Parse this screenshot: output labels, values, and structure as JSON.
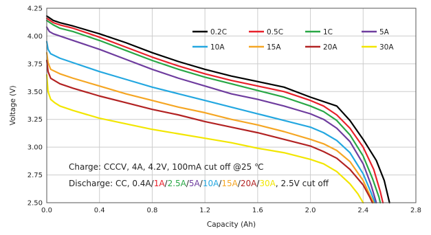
{
  "chart_data": {
    "type": "line",
    "xlabel": "Capacity (Ah)",
    "ylabel": "Voltage (V)",
    "xlim": [
      0.0,
      2.8
    ],
    "ylim": [
      2.5,
      4.25
    ],
    "xticks": [
      "0.0",
      "0.4",
      "0.8",
      "1.2",
      "1.6",
      "2.0",
      "2.4",
      "2.8"
    ],
    "yticks": [
      "2.50",
      "2.75",
      "3.00",
      "3.25",
      "3.50",
      "3.75",
      "4.00",
      "4.25"
    ],
    "grid": true,
    "legend_position": "top-right",
    "series": [
      {
        "name": "0.2C",
        "color": "#000000",
        "points": [
          [
            0.0,
            4.18
          ],
          [
            0.05,
            4.14
          ],
          [
            0.1,
            4.12
          ],
          [
            0.2,
            4.09
          ],
          [
            0.4,
            4.02
          ],
          [
            0.6,
            3.94
          ],
          [
            0.8,
            3.85
          ],
          [
            1.0,
            3.77
          ],
          [
            1.2,
            3.7
          ],
          [
            1.4,
            3.64
          ],
          [
            1.6,
            3.59
          ],
          [
            1.8,
            3.54
          ],
          [
            2.0,
            3.45
          ],
          [
            2.2,
            3.37
          ],
          [
            2.3,
            3.24
          ],
          [
            2.4,
            3.07
          ],
          [
            2.5,
            2.88
          ],
          [
            2.56,
            2.7
          ],
          [
            2.6,
            2.5
          ]
        ]
      },
      {
        "name": "0.5C",
        "color": "#e8202a",
        "points": [
          [
            0.0,
            4.16
          ],
          [
            0.05,
            4.12
          ],
          [
            0.1,
            4.1
          ],
          [
            0.2,
            4.07
          ],
          [
            0.4,
            3.99
          ],
          [
            0.6,
            3.9
          ],
          [
            0.8,
            3.81
          ],
          [
            1.0,
            3.73
          ],
          [
            1.2,
            3.66
          ],
          [
            1.4,
            3.6
          ],
          [
            1.6,
            3.55
          ],
          [
            1.8,
            3.5
          ],
          [
            2.0,
            3.42
          ],
          [
            2.1,
            3.37
          ],
          [
            2.2,
            3.29
          ],
          [
            2.3,
            3.17
          ],
          [
            2.4,
            3.0
          ],
          [
            2.48,
            2.8
          ],
          [
            2.53,
            2.6
          ],
          [
            2.55,
            2.5
          ]
        ]
      },
      {
        "name": "1C",
        "color": "#28a745",
        "points": [
          [
            0.0,
            4.14
          ],
          [
            0.05,
            4.1
          ],
          [
            0.1,
            4.07
          ],
          [
            0.2,
            4.04
          ],
          [
            0.4,
            3.96
          ],
          [
            0.6,
            3.87
          ],
          [
            0.8,
            3.78
          ],
          [
            1.0,
            3.7
          ],
          [
            1.2,
            3.63
          ],
          [
            1.4,
            3.57
          ],
          [
            1.6,
            3.51
          ],
          [
            1.8,
            3.45
          ],
          [
            2.0,
            3.37
          ],
          [
            2.1,
            3.32
          ],
          [
            2.2,
            3.24
          ],
          [
            2.3,
            3.11
          ],
          [
            2.4,
            2.92
          ],
          [
            2.47,
            2.72
          ],
          [
            2.52,
            2.55
          ],
          [
            2.53,
            2.5
          ]
        ]
      },
      {
        "name": "5A",
        "color": "#6e3c9e",
        "points": [
          [
            0.0,
            4.08
          ],
          [
            0.02,
            4.04
          ],
          [
            0.05,
            4.02
          ],
          [
            0.1,
            4.0
          ],
          [
            0.2,
            3.96
          ],
          [
            0.4,
            3.88
          ],
          [
            0.6,
            3.79
          ],
          [
            0.8,
            3.7
          ],
          [
            1.0,
            3.62
          ],
          [
            1.2,
            3.55
          ],
          [
            1.4,
            3.48
          ],
          [
            1.6,
            3.43
          ],
          [
            1.8,
            3.37
          ],
          [
            2.0,
            3.3
          ],
          [
            2.1,
            3.25
          ],
          [
            2.2,
            3.17
          ],
          [
            2.3,
            3.05
          ],
          [
            2.4,
            2.85
          ],
          [
            2.46,
            2.66
          ],
          [
            2.5,
            2.5
          ]
        ]
      },
      {
        "name": "10A",
        "color": "#23a7e0",
        "points": [
          [
            0.0,
            3.95
          ],
          [
            0.01,
            3.88
          ],
          [
            0.03,
            3.84
          ],
          [
            0.1,
            3.8
          ],
          [
            0.2,
            3.76
          ],
          [
            0.4,
            3.68
          ],
          [
            0.6,
            3.61
          ],
          [
            0.8,
            3.54
          ],
          [
            1.0,
            3.48
          ],
          [
            1.2,
            3.42
          ],
          [
            1.4,
            3.36
          ],
          [
            1.6,
            3.3
          ],
          [
            1.8,
            3.24
          ],
          [
            2.0,
            3.18
          ],
          [
            2.1,
            3.13
          ],
          [
            2.2,
            3.06
          ],
          [
            2.3,
            2.95
          ],
          [
            2.4,
            2.76
          ],
          [
            2.45,
            2.62
          ],
          [
            2.49,
            2.5
          ]
        ]
      },
      {
        "name": "15A",
        "color": "#f5a623",
        "points": [
          [
            0.0,
            3.85
          ],
          [
            0.01,
            3.76
          ],
          [
            0.03,
            3.7
          ],
          [
            0.1,
            3.66
          ],
          [
            0.2,
            3.62
          ],
          [
            0.4,
            3.55
          ],
          [
            0.6,
            3.48
          ],
          [
            0.8,
            3.42
          ],
          [
            1.0,
            3.36
          ],
          [
            1.2,
            3.31
          ],
          [
            1.4,
            3.25
          ],
          [
            1.6,
            3.2
          ],
          [
            1.8,
            3.14
          ],
          [
            2.0,
            3.07
          ],
          [
            2.1,
            3.03
          ],
          [
            2.2,
            2.97
          ],
          [
            2.3,
            2.87
          ],
          [
            2.4,
            2.7
          ],
          [
            2.45,
            2.57
          ],
          [
            2.48,
            2.5
          ]
        ]
      },
      {
        "name": "20A",
        "color": "#b22222",
        "points": [
          [
            0.0,
            3.78
          ],
          [
            0.01,
            3.68
          ],
          [
            0.03,
            3.62
          ],
          [
            0.1,
            3.57
          ],
          [
            0.2,
            3.53
          ],
          [
            0.4,
            3.46
          ],
          [
            0.6,
            3.4
          ],
          [
            0.8,
            3.34
          ],
          [
            1.0,
            3.29
          ],
          [
            1.2,
            3.23
          ],
          [
            1.4,
            3.18
          ],
          [
            1.6,
            3.13
          ],
          [
            1.8,
            3.07
          ],
          [
            2.0,
            3.01
          ],
          [
            2.1,
            2.96
          ],
          [
            2.2,
            2.9
          ],
          [
            2.3,
            2.8
          ],
          [
            2.4,
            2.66
          ],
          [
            2.45,
            2.55
          ],
          [
            2.47,
            2.5
          ]
        ]
      },
      {
        "name": "30A",
        "color": "#f2e600",
        "points": [
          [
            0.0,
            3.65
          ],
          [
            0.01,
            3.5
          ],
          [
            0.03,
            3.43
          ],
          [
            0.06,
            3.4
          ],
          [
            0.1,
            3.37
          ],
          [
            0.2,
            3.33
          ],
          [
            0.4,
            3.26
          ],
          [
            0.6,
            3.21
          ],
          [
            0.8,
            3.16
          ],
          [
            1.0,
            3.12
          ],
          [
            1.2,
            3.08
          ],
          [
            1.4,
            3.04
          ],
          [
            1.6,
            2.99
          ],
          [
            1.8,
            2.95
          ],
          [
            2.0,
            2.89
          ],
          [
            2.1,
            2.85
          ],
          [
            2.2,
            2.78
          ],
          [
            2.3,
            2.67
          ],
          [
            2.36,
            2.58
          ],
          [
            2.4,
            2.5
          ]
        ]
      }
    ],
    "annotations": {
      "charge": "Charge: CCCV, 4A, 4.2V, 100mA cut off @25 ℃",
      "discharge_prefix": "Discharge: CC, 0.4A/",
      "discharge_rates": [
        {
          "text": "1A",
          "color": "#e8202a"
        },
        {
          "text": "2.5A",
          "color": "#28a745"
        },
        {
          "text": "5A",
          "color": "#6e3c9e"
        },
        {
          "text": "10A",
          "color": "#23a7e0"
        },
        {
          "text": "15A",
          "color": "#f5a623"
        },
        {
          "text": "20A",
          "color": "#b22222"
        },
        {
          "text": "30A",
          "color": "#f2e600"
        }
      ],
      "discharge_separator": "/",
      "discharge_suffix": ", 2.5V cut off"
    }
  }
}
